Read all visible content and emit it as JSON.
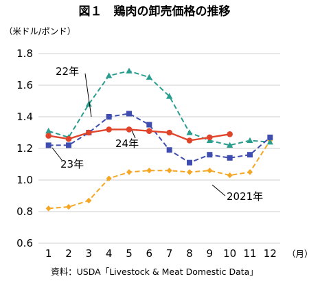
{
  "chart_data": {
    "type": "line",
    "title": "図１　鶏肉の卸売価格の推移",
    "ylabel": "（米ドル/ポンド）",
    "xlabel": "（月）",
    "source": "資料：USDA「Livestock & Meat Domestic Data」",
    "categories": [
      "1",
      "2",
      "3",
      "4",
      "5",
      "6",
      "7",
      "8",
      "9",
      "10",
      "11",
      "12"
    ],
    "ylim": [
      0.6,
      1.8
    ],
    "yticks": [
      "0.6",
      "0.8",
      "1.0",
      "1.2",
      "1.4",
      "1.6",
      "1.8"
    ],
    "grid": true,
    "series": [
      {
        "name": "2021年",
        "color": "#f5a623",
        "dash": true,
        "marker": "diamond",
        "values": [
          0.82,
          0.83,
          0.87,
          1.01,
          1.05,
          1.06,
          1.06,
          1.05,
          1.06,
          1.03,
          1.05,
          1.25
        ]
      },
      {
        "name": "22年",
        "color": "#2a9d8f",
        "dash": true,
        "marker": "triangle",
        "values": [
          1.31,
          1.27,
          1.48,
          1.66,
          1.69,
          1.65,
          1.53,
          1.3,
          1.25,
          1.22,
          1.25,
          1.24
        ]
      },
      {
        "name": "23年",
        "color": "#3f4db0",
        "dash": true,
        "marker": "square",
        "values": [
          1.22,
          1.22,
          1.3,
          1.4,
          1.42,
          1.35,
          1.19,
          1.11,
          1.16,
          1.14,
          1.16,
          1.27
        ]
      },
      {
        "name": "24年",
        "color": "#e0452b",
        "dash": false,
        "marker": "circle",
        "values": [
          1.28,
          1.26,
          1.3,
          1.32,
          1.32,
          1.31,
          1.3,
          1.25,
          1.27,
          1.29,
          null,
          null
        ]
      }
    ]
  }
}
